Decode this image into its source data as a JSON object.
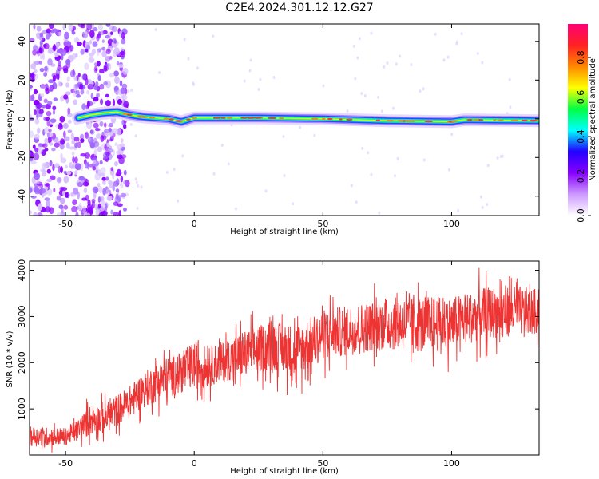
{
  "title": "C2E4.2024.301.12.12.G27",
  "chart_data": [
    {
      "type": "heatmap",
      "xlabel": "Height of straight line (km)",
      "ylabel": "Frequency (Hz)",
      "xlim": [
        -64,
        134
      ],
      "ylim": [
        -50,
        49
      ],
      "xticks": [
        -50,
        0,
        50,
        100
      ],
      "yticks": [
        -40,
        -20,
        0,
        20,
        40
      ],
      "colorbar": {
        "label": "Normalized spectral amplitude",
        "range": [
          0,
          0.97
        ],
        "ticks": [
          0.0,
          0.2,
          0.4,
          0.6,
          0.8
        ],
        "colors": [
          "#ffffff",
          "#cc99ff",
          "#8800ff",
          "#2200ff",
          "#00ffff",
          "#00ff44",
          "#ffff00",
          "#ff8800",
          "#ff2222",
          "#ff0077"
        ]
      },
      "ridge": [
        {
          "x": -45,
          "y": 0.5
        },
        {
          "x": -40,
          "y": 2
        },
        {
          "x": -35,
          "y": 3
        },
        {
          "x": -30,
          "y": 3.5
        },
        {
          "x": -25,
          "y": 2
        },
        {
          "x": -20,
          "y": 1
        },
        {
          "x": -15,
          "y": 0.5
        },
        {
          "x": -10,
          "y": 0
        },
        {
          "x": -5,
          "y": -1.5
        },
        {
          "x": 0,
          "y": 0.5
        },
        {
          "x": 25,
          "y": 0.5
        },
        {
          "x": 50,
          "y": 0
        },
        {
          "x": 75,
          "y": -1
        },
        {
          "x": 100,
          "y": -1.5
        },
        {
          "x": 105,
          "y": -0.5
        },
        {
          "x": 134,
          "y": -1
        }
      ]
    },
    {
      "type": "line",
      "xlabel": "Height of straight line (km)",
      "ylabel": "SNR (10 * v/v)",
      "xlim": [
        -64,
        134
      ],
      "ylim": [
        0,
        4200
      ],
      "xticks": [
        -50,
        0,
        50,
        100
      ],
      "yticks": [
        1000,
        2000,
        3000,
        4000
      ],
      "color": "#ee3333",
      "series": [
        {
          "envelope": [
            {
              "x": -64,
              "low": 0,
              "high": 800
            },
            {
              "x": -50,
              "low": 50,
              "high": 750
            },
            {
              "x": -45,
              "low": 100,
              "high": 1000
            },
            {
              "x": -40,
              "low": 150,
              "high": 1400
            },
            {
              "x": -35,
              "low": 200,
              "high": 1350
            },
            {
              "x": -30,
              "low": 350,
              "high": 1600
            },
            {
              "x": -25,
              "low": 500,
              "high": 1800
            },
            {
              "x": -20,
              "low": 700,
              "high": 2100
            },
            {
              "x": -15,
              "low": 800,
              "high": 2300
            },
            {
              "x": -10,
              "low": 900,
              "high": 2500
            },
            {
              "x": -5,
              "low": 950,
              "high": 2600
            },
            {
              "x": 0,
              "low": 1000,
              "high": 2900
            },
            {
              "x": 5,
              "low": 1100,
              "high": 2700
            },
            {
              "x": 10,
              "low": 1200,
              "high": 2800
            },
            {
              "x": 20,
              "low": 1300,
              "high": 3100
            },
            {
              "x": 30,
              "low": 1400,
              "high": 3350
            },
            {
              "x": 40,
              "low": 1200,
              "high": 3300
            },
            {
              "x": 50,
              "low": 1600,
              "high": 3600
            },
            {
              "x": 60,
              "low": 1700,
              "high": 3700
            },
            {
              "x": 70,
              "low": 1800,
              "high": 3800
            },
            {
              "x": 80,
              "low": 1800,
              "high": 3900
            },
            {
              "x": 90,
              "low": 1700,
              "high": 3950
            },
            {
              "x": 100,
              "low": 1800,
              "high": 3900
            },
            {
              "x": 110,
              "low": 2000,
              "high": 4050
            },
            {
              "x": 120,
              "low": 2100,
              "high": 4150
            },
            {
              "x": 134,
              "low": 2200,
              "high": 4000
            }
          ]
        }
      ]
    }
  ]
}
